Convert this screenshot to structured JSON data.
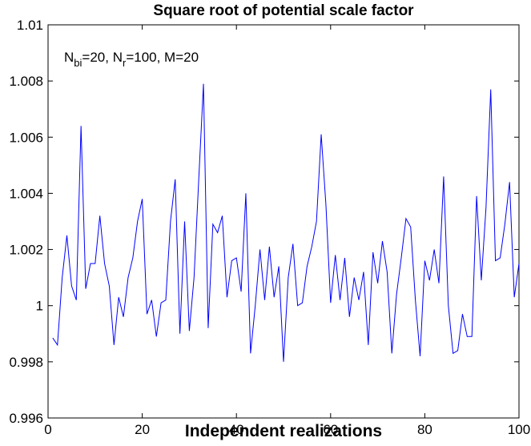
{
  "chart_data": {
    "type": "line",
    "title": "Square root of potential scale factor",
    "x_label": "Independent realizations",
    "annotation": [
      {
        "text": "N"
      },
      {
        "text": "bi",
        "sub": true
      },
      {
        "text": "=20, N"
      },
      {
        "text": "r",
        "sub": true
      },
      {
        "text": "=100, M=20"
      }
    ],
    "x": [
      1,
      2,
      3,
      4,
      5,
      6,
      7,
      8,
      9,
      10,
      11,
      12,
      13,
      14,
      15,
      16,
      17,
      18,
      19,
      20,
      21,
      22,
      23,
      24,
      25,
      26,
      27,
      28,
      29,
      30,
      31,
      32,
      33,
      34,
      35,
      36,
      37,
      38,
      39,
      40,
      41,
      42,
      43,
      44,
      45,
      46,
      47,
      48,
      49,
      50,
      51,
      52,
      53,
      54,
      55,
      56,
      57,
      58,
      59,
      60,
      61,
      62,
      63,
      64,
      65,
      66,
      67,
      68,
      69,
      70,
      71,
      72,
      73,
      74,
      75,
      76,
      77,
      78,
      79,
      80,
      81,
      82,
      83,
      84,
      85,
      86,
      87,
      88,
      89,
      90,
      91,
      92,
      93,
      94,
      95,
      96,
      97,
      98,
      99,
      100
    ],
    "series": [
      {
        "color": "#0000ff",
        "values": [
          0.99885,
          0.9986,
          1.001,
          1.0025,
          1.0007,
          1.0002,
          1.0064,
          1.0006,
          1.0015,
          1.0015,
          1.0032,
          1.0015,
          1.0007,
          0.9986,
          1.0003,
          0.9996,
          1.001,
          1.0017,
          1.003,
          1.0038,
          0.9997,
          1.0002,
          0.9989,
          1.0001,
          1.0002,
          1.003,
          1.0045,
          0.999,
          1.003,
          0.9991,
          1.001,
          1.0045,
          1.0079,
          0.9992,
          1.0029,
          1.0026,
          1.0032,
          1.0003,
          1.0016,
          1.0017,
          1.0005,
          1.004,
          0.9983,
          1.0,
          1.002,
          1.0002,
          1.0021,
          1.0003,
          1.0014,
          0.998,
          1.001,
          1.0022,
          1.0,
          1.0001,
          1.0014,
          1.0021,
          1.003,
          1.0061,
          1.0036,
          1.0001,
          1.0018,
          1.0002,
          1.0017,
          0.9996,
          1.001,
          1.0002,
          1.0012,
          0.9986,
          1.0019,
          1.0008,
          1.0023,
          1.0012,
          0.9983,
          1.0004,
          1.0017,
          1.0031,
          1.0028,
          1.0002,
          0.9982,
          1.0016,
          1.0009,
          1.002,
          1.0008,
          1.0046,
          1.0,
          0.9983,
          0.9984,
          0.9997,
          0.9989,
          0.9989,
          1.0039,
          1.0009,
          1.0035,
          1.0077,
          1.0016,
          1.0017,
          1.0029,
          1.0044,
          1.0003,
          1.0015
        ]
      }
    ],
    "xlim": [
      0,
      100
    ],
    "xticks": [
      0,
      20,
      40,
      60,
      80,
      100
    ],
    "ylim": [
      0.996,
      1.01
    ],
    "yticks": [
      0.996,
      0.998,
      1,
      1.002,
      1.004,
      1.006,
      1.008,
      1.01
    ]
  }
}
